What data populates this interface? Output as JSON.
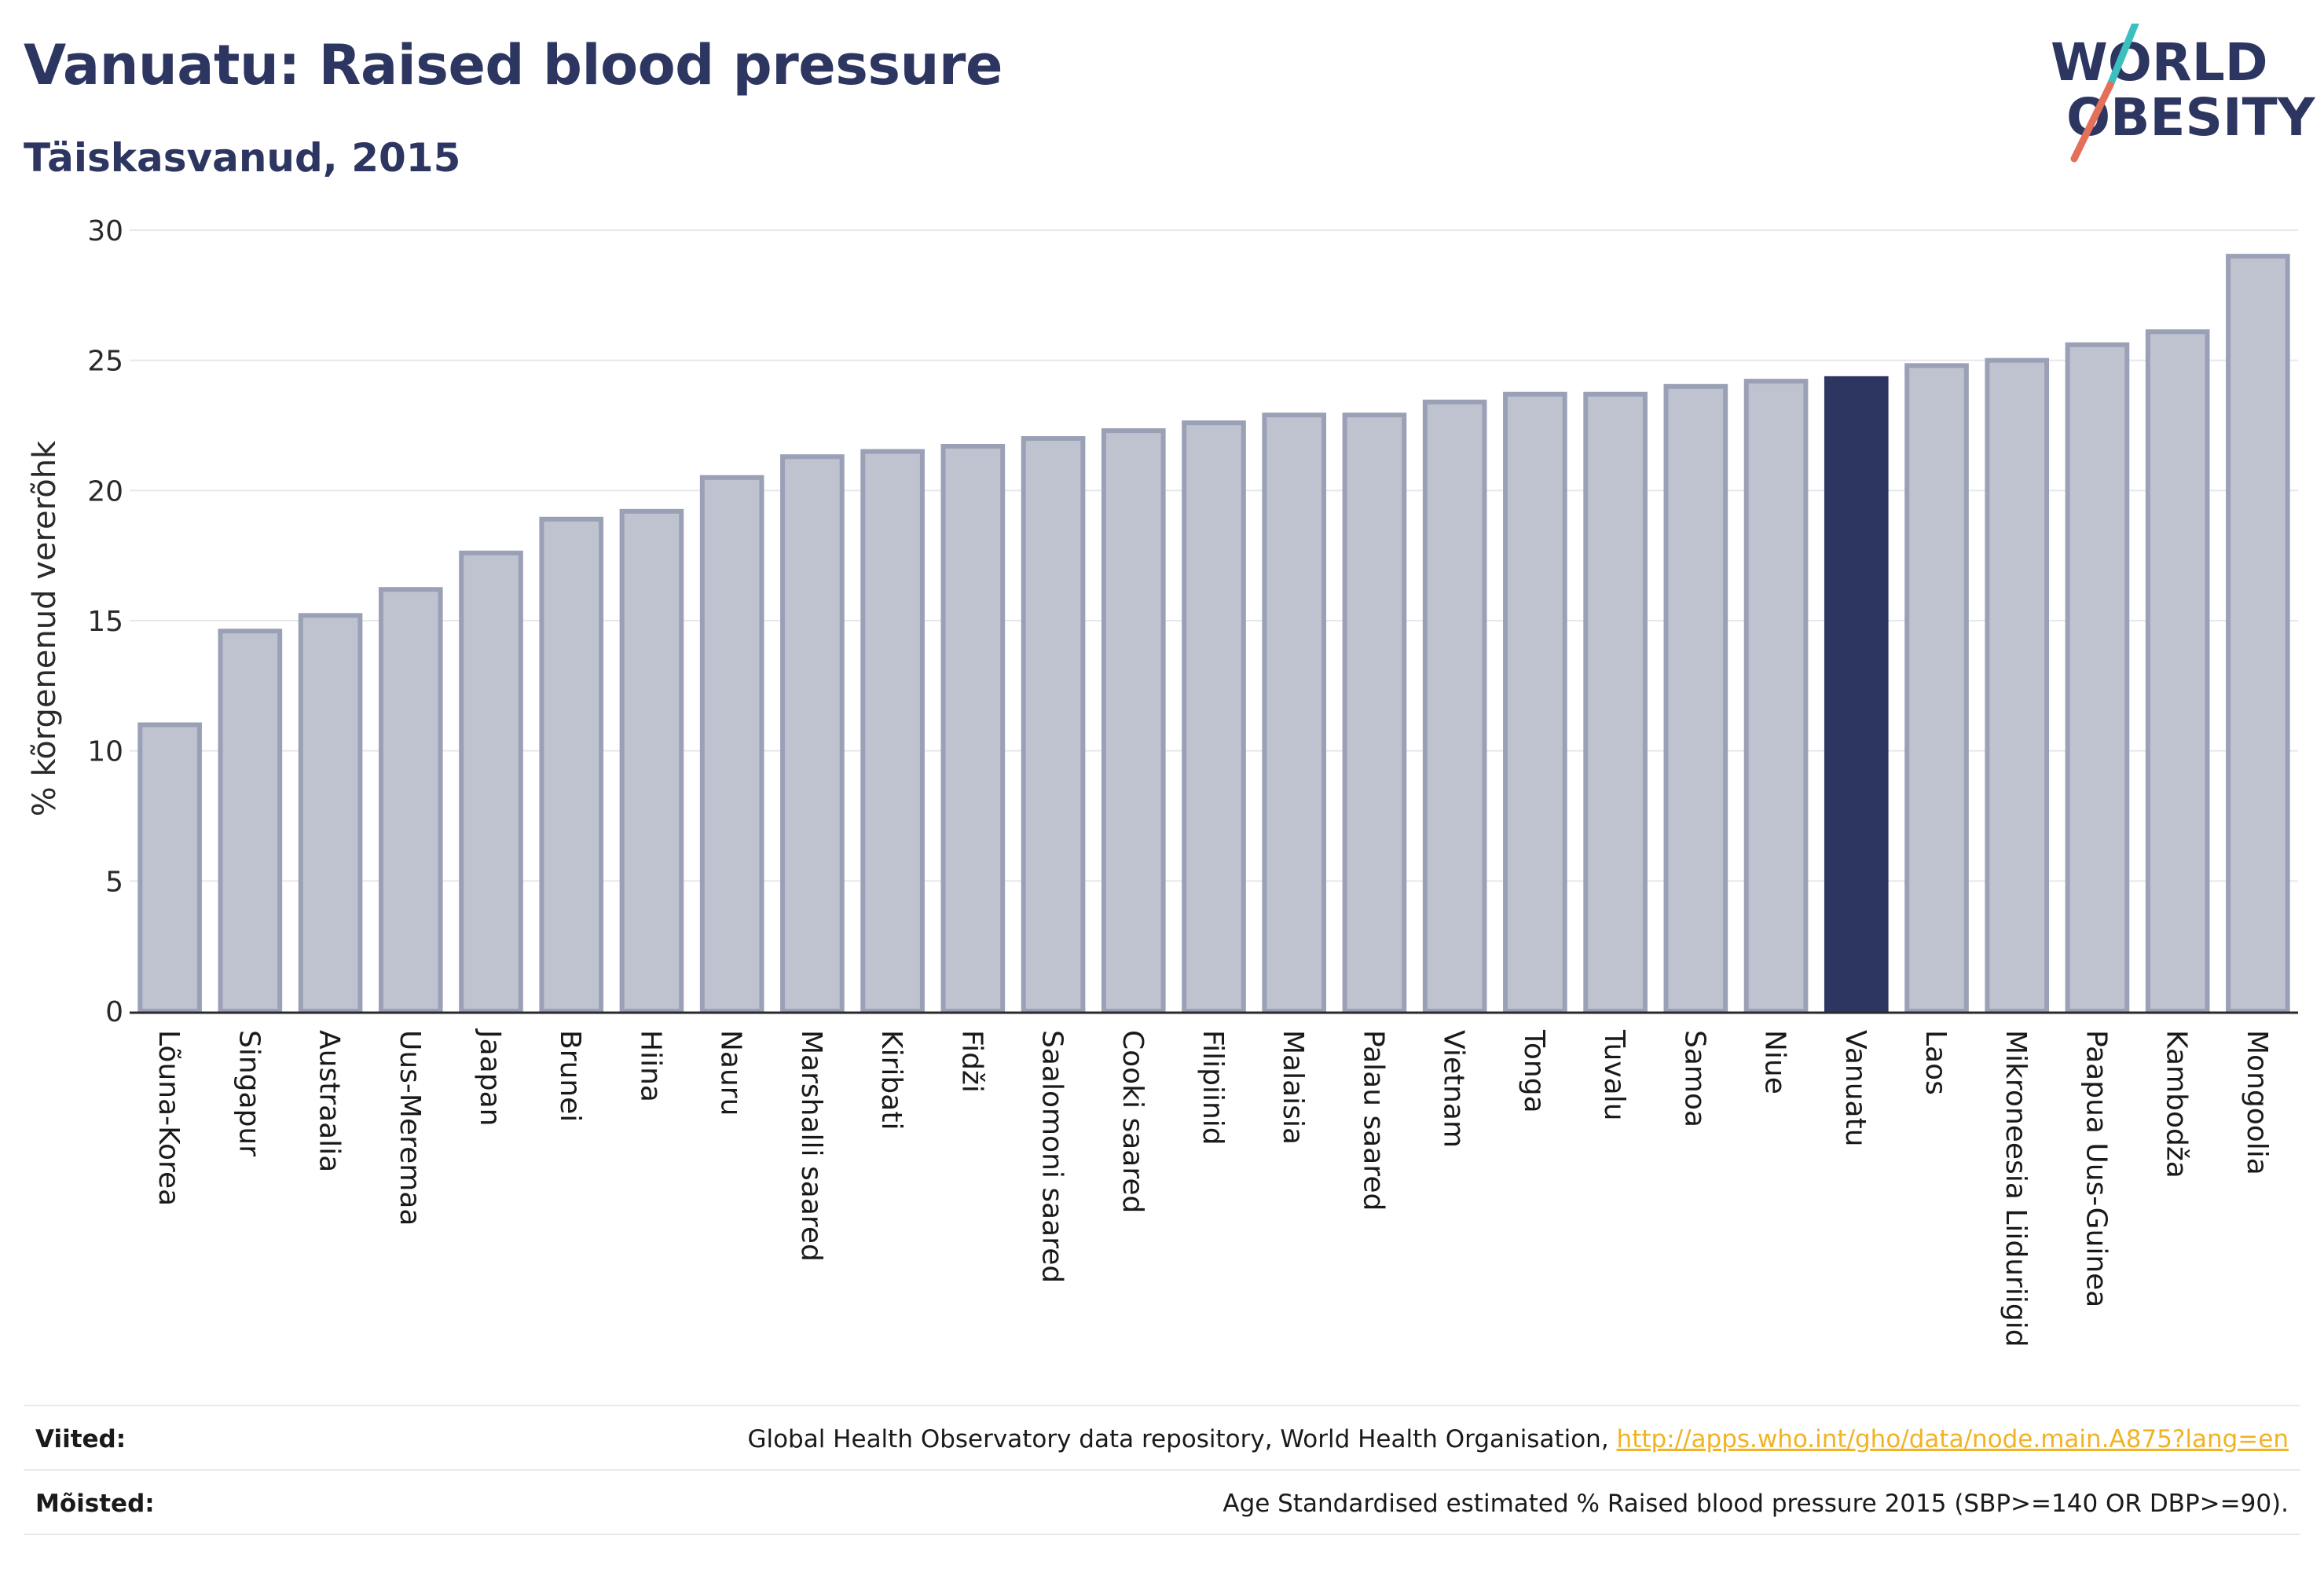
{
  "header": {
    "title": "Vanuatu: Raised blood pressure",
    "subtitle": "Täiskasvanud, 2015"
  },
  "logo": {
    "line1": "WORLD",
    "line2": "OBESITY",
    "colors": {
      "text": "#2d3661",
      "slash_teal": "#3bbfbf",
      "slash_coral": "#e5705a"
    }
  },
  "chart_data": {
    "type": "bar",
    "title": "Vanuatu: Raised blood pressure",
    "subtitle": "Täiskasvanud, 2015",
    "xlabel": "",
    "ylabel": "% kõrgenenud vererõhk",
    "ylim": [
      0,
      30
    ],
    "yticks": [
      0,
      5,
      10,
      15,
      20,
      25,
      30
    ],
    "grid": true,
    "categories": [
      "Lõuna-Korea",
      "Singapur",
      "Austraalia",
      "Uus-Meremaa",
      "Jaapan",
      "Brunei",
      "Hiina",
      "Nauru",
      "Marshalli saared",
      "Kiribati",
      "Fidži",
      "Saalomoni saared",
      "Cooki saared",
      "Filipiinid",
      "Malaisia",
      "Palau saared",
      "Vietnam",
      "Tonga",
      "Tuvalu",
      "Samoa",
      "Niue",
      "Vanuatu",
      "Laos",
      "Mikroneesia Liiduriigid",
      "Paapua Uus-Guinea",
      "Kambodža",
      "Mongoolia"
    ],
    "values": [
      11.0,
      14.6,
      15.2,
      16.2,
      17.6,
      18.9,
      19.2,
      20.5,
      21.3,
      21.5,
      21.7,
      22.0,
      22.3,
      22.6,
      22.9,
      22.9,
      23.4,
      23.7,
      23.7,
      24.0,
      24.2,
      24.3,
      24.8,
      25.0,
      25.6,
      26.1,
      29.0
    ],
    "highlight": "Vanuatu",
    "colors": {
      "bar": "#bfc3cf",
      "bar_border": "#9aa0b6",
      "highlight": "#2d3661",
      "grid": "#e6e7ec",
      "axis": "#2a2a2a"
    }
  },
  "footer": {
    "sources_label": "Viited:",
    "sources_text": "Global Health Observatory data repository, World Health Organisation, ",
    "sources_link": "http://apps.who.int/gho/data/node.main.A875?lang=en",
    "definitions_label": "Mõisted:",
    "definitions_text": "Age Standardised estimated % Raised blood pressure 2015 (SBP>=140 OR DBP>=90)."
  }
}
